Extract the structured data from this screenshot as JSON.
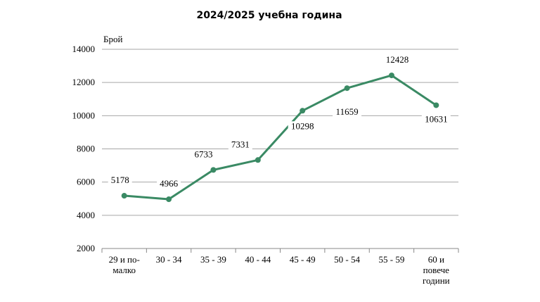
{
  "chart_data": {
    "type": "line",
    "title_line1": "",
    "title": "2024/2025 учебна година",
    "ylabel": "Брой",
    "xlabel": "",
    "ylim": [
      2000,
      14000
    ],
    "yticks": [
      2000,
      4000,
      6000,
      8000,
      10000,
      12000,
      14000
    ],
    "grid": true,
    "categories": [
      [
        "29 и по-",
        "малко"
      ],
      [
        "30 - 34"
      ],
      [
        "35 - 39"
      ],
      [
        "40 - 44"
      ],
      [
        "45 - 49"
      ],
      [
        "50 - 54"
      ],
      [
        "55 - 59"
      ],
      [
        "60 и",
        "повече",
        "години"
      ]
    ],
    "series": [
      {
        "values": [
          5178,
          4966,
          6733,
          7331,
          10298,
          11659,
          12428,
          10631
        ],
        "color": "#3a8a64"
      }
    ]
  }
}
